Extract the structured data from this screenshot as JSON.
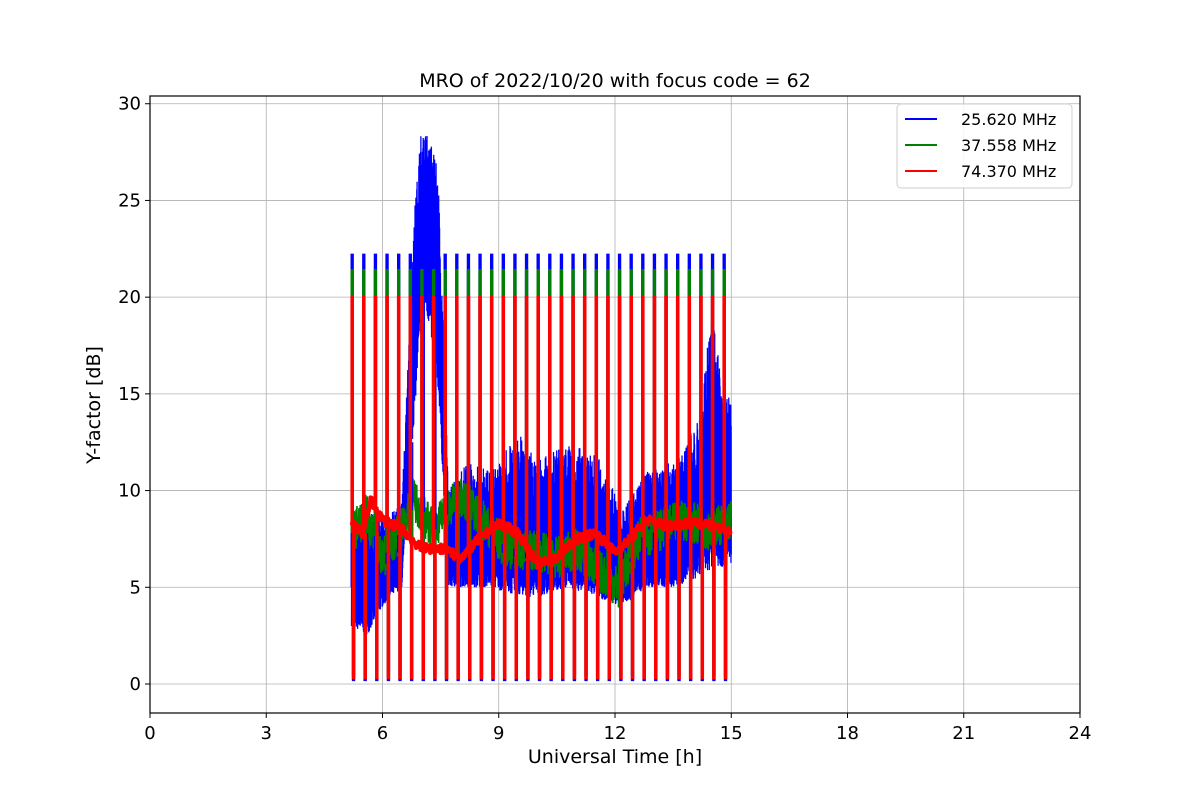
{
  "chart_data": {
    "type": "line",
    "title": "MRO of 2022/10/20 with focus code = 62",
    "xlabel": "Universal Time [h]",
    "ylabel": "Y-factor [dB]",
    "xlim": [
      0,
      24
    ],
    "ylim": [
      -1.5,
      30.4
    ],
    "x_ticks": [
      0,
      3,
      6,
      9,
      12,
      15,
      18,
      21,
      24
    ],
    "y_ticks": [
      0,
      5,
      10,
      15,
      20,
      25,
      30
    ],
    "grid": true,
    "legend_position": "top-right",
    "data_range_x": [
      5.2,
      15.0
    ],
    "calibration_period_h": 0.3,
    "series": [
      {
        "name": "25.620 MHz",
        "color": "#0000ff",
        "calibration_high_db": 22.2,
        "calibration_low_db": 0.2,
        "envelope": [
          {
            "x": 5.2,
            "min": 3.0,
            "max": 8.0
          },
          {
            "x": 5.6,
            "min": 2.5,
            "max": 9.0
          },
          {
            "x": 6.0,
            "min": 4.0,
            "max": 8.5
          },
          {
            "x": 6.5,
            "min": 5.0,
            "max": 9.5
          },
          {
            "x": 6.9,
            "min": 16.0,
            "max": 27.5
          },
          {
            "x": 7.05,
            "min": 20.0,
            "max": 29.0
          },
          {
            "x": 7.25,
            "min": 18.0,
            "max": 28.0
          },
          {
            "x": 7.45,
            "min": 15.0,
            "max": 26.5
          },
          {
            "x": 7.7,
            "min": 5.0,
            "max": 10.0
          },
          {
            "x": 8.2,
            "min": 5.0,
            "max": 11.5
          },
          {
            "x": 8.8,
            "min": 5.0,
            "max": 11.0
          },
          {
            "x": 9.5,
            "min": 4.5,
            "max": 13.0
          },
          {
            "x": 10.0,
            "min": 4.5,
            "max": 11.5
          },
          {
            "x": 10.8,
            "min": 5.0,
            "max": 12.5
          },
          {
            "x": 11.5,
            "min": 4.5,
            "max": 12.0
          },
          {
            "x": 12.2,
            "min": 4.0,
            "max": 9.0
          },
          {
            "x": 12.8,
            "min": 5.0,
            "max": 11.0
          },
          {
            "x": 13.5,
            "min": 5.0,
            "max": 11.5
          },
          {
            "x": 14.2,
            "min": 5.5,
            "max": 14.0
          },
          {
            "x": 14.5,
            "min": 6.0,
            "max": 19.5
          },
          {
            "x": 14.8,
            "min": 6.0,
            "max": 15.0
          },
          {
            "x": 15.0,
            "min": 6.0,
            "max": 15.0
          }
        ]
      },
      {
        "name": "37.558 MHz",
        "color": "#008000",
        "calibration_high_db": 21.4,
        "calibration_low_db": 0.5,
        "trend": [
          {
            "x": 5.2,
            "y": 7.8
          },
          {
            "x": 5.6,
            "y": 8.8
          },
          {
            "x": 6.0,
            "y": 6.5
          },
          {
            "x": 6.5,
            "y": 8.0
          },
          {
            "x": 6.8,
            "y": 9.5
          },
          {
            "x": 7.3,
            "y": 8.0
          },
          {
            "x": 8.0,
            "y": 9.8
          },
          {
            "x": 8.6,
            "y": 8.5
          },
          {
            "x": 9.2,
            "y": 7.0
          },
          {
            "x": 9.8,
            "y": 7.0
          },
          {
            "x": 10.5,
            "y": 6.5
          },
          {
            "x": 11.0,
            "y": 7.0
          },
          {
            "x": 11.5,
            "y": 6.0
          },
          {
            "x": 12.1,
            "y": 5.0
          },
          {
            "x": 12.6,
            "y": 7.5
          },
          {
            "x": 13.2,
            "y": 8.0
          },
          {
            "x": 13.8,
            "y": 8.5
          },
          {
            "x": 14.4,
            "y": 8.0
          },
          {
            "x": 15.0,
            "y": 8.5
          }
        ]
      },
      {
        "name": "74.370 MHz",
        "color": "#ff0000",
        "calibration_high_db": 20.0,
        "calibration_low_db": 0.3,
        "trend": [
          {
            "x": 5.2,
            "y": 8.3
          },
          {
            "x": 5.5,
            "y": 7.8
          },
          {
            "x": 5.7,
            "y": 9.5
          },
          {
            "x": 6.0,
            "y": 8.5
          },
          {
            "x": 6.5,
            "y": 8.0
          },
          {
            "x": 7.0,
            "y": 7.0
          },
          {
            "x": 7.6,
            "y": 7.0
          },
          {
            "x": 8.0,
            "y": 6.5
          },
          {
            "x": 8.5,
            "y": 7.5
          },
          {
            "x": 9.0,
            "y": 8.3
          },
          {
            "x": 9.5,
            "y": 7.8
          },
          {
            "x": 10.0,
            "y": 6.2
          },
          {
            "x": 10.5,
            "y": 6.5
          },
          {
            "x": 11.0,
            "y": 7.5
          },
          {
            "x": 11.5,
            "y": 7.8
          },
          {
            "x": 12.0,
            "y": 6.8
          },
          {
            "x": 12.4,
            "y": 7.5
          },
          {
            "x": 12.8,
            "y": 8.5
          },
          {
            "x": 13.3,
            "y": 8.2
          },
          {
            "x": 13.8,
            "y": 8.3
          },
          {
            "x": 14.4,
            "y": 8.3
          },
          {
            "x": 15.0,
            "y": 7.8
          }
        ]
      }
    ]
  }
}
